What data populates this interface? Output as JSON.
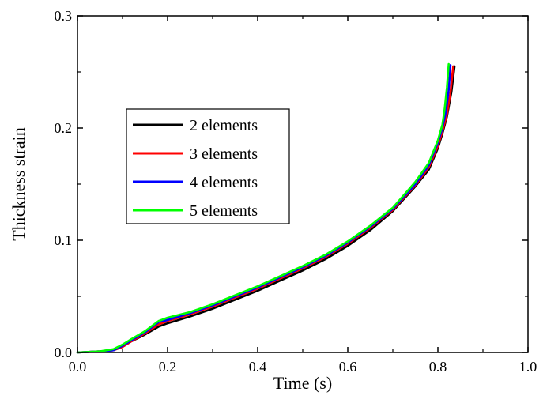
{
  "chart_data": {
    "type": "line",
    "title": "",
    "xlabel": "Time (s)",
    "ylabel": "Thickness strain",
    "xlim": [
      0.0,
      1.0
    ],
    "ylim": [
      0.0,
      0.3
    ],
    "xticks": [
      0.0,
      0.2,
      0.4,
      0.6,
      0.8,
      1.0
    ],
    "xtick_labels": [
      "0.0",
      "0.2",
      "0.4",
      "0.6",
      "0.8",
      "1.0"
    ],
    "yticks": [
      0.0,
      0.1,
      0.2,
      0.3
    ],
    "ytick_labels": [
      "0.0",
      "0.1",
      "0.2",
      "0.3"
    ],
    "grid": false,
    "legend_position": "upper-left",
    "series": [
      {
        "name": "2 elements",
        "color": "#000000",
        "x": [
          0.0,
          0.05,
          0.08,
          0.1,
          0.12,
          0.15,
          0.18,
          0.2,
          0.25,
          0.3,
          0.35,
          0.4,
          0.45,
          0.5,
          0.55,
          0.6,
          0.65,
          0.7,
          0.75,
          0.78,
          0.8,
          0.81,
          0.82,
          0.83,
          0.837
        ],
        "y": [
          0.0,
          0.001,
          0.002,
          0.005,
          0.01,
          0.016,
          0.023,
          0.026,
          0.032,
          0.039,
          0.047,
          0.055,
          0.064,
          0.073,
          0.083,
          0.095,
          0.109,
          0.126,
          0.148,
          0.163,
          0.182,
          0.195,
          0.21,
          0.232,
          0.255
        ]
      },
      {
        "name": "3 elements",
        "color": "#ff0000",
        "x": [
          0.0,
          0.05,
          0.08,
          0.1,
          0.12,
          0.15,
          0.18,
          0.2,
          0.25,
          0.3,
          0.35,
          0.4,
          0.45,
          0.5,
          0.55,
          0.6,
          0.65,
          0.7,
          0.75,
          0.78,
          0.8,
          0.81,
          0.82,
          0.828,
          0.834
        ],
        "y": [
          0.0,
          0.001,
          0.002,
          0.005,
          0.01,
          0.017,
          0.025,
          0.028,
          0.034,
          0.041,
          0.049,
          0.057,
          0.066,
          0.075,
          0.085,
          0.097,
          0.111,
          0.127,
          0.149,
          0.165,
          0.184,
          0.197,
          0.212,
          0.232,
          0.255
        ]
      },
      {
        "name": "4 elements",
        "color": "#0000ff",
        "x": [
          0.0,
          0.05,
          0.08,
          0.1,
          0.12,
          0.15,
          0.18,
          0.2,
          0.25,
          0.3,
          0.35,
          0.4,
          0.45,
          0.5,
          0.55,
          0.6,
          0.65,
          0.7,
          0.75,
          0.78,
          0.8,
          0.81,
          0.818,
          0.824,
          0.828
        ],
        "y": [
          0.0,
          0.001,
          0.002,
          0.006,
          0.011,
          0.018,
          0.027,
          0.029,
          0.035,
          0.042,
          0.05,
          0.058,
          0.067,
          0.076,
          0.086,
          0.098,
          0.112,
          0.128,
          0.15,
          0.167,
          0.187,
          0.2,
          0.215,
          0.234,
          0.256
        ]
      },
      {
        "name": "5 elements",
        "color": "#00ff00",
        "x": [
          0.0,
          0.05,
          0.08,
          0.1,
          0.12,
          0.15,
          0.18,
          0.2,
          0.25,
          0.3,
          0.35,
          0.4,
          0.45,
          0.5,
          0.55,
          0.6,
          0.65,
          0.7,
          0.75,
          0.78,
          0.8,
          0.81,
          0.815,
          0.82,
          0.824
        ],
        "y": [
          0.0,
          0.001,
          0.003,
          0.007,
          0.012,
          0.019,
          0.028,
          0.031,
          0.036,
          0.043,
          0.051,
          0.059,
          0.068,
          0.077,
          0.087,
          0.099,
          0.113,
          0.129,
          0.152,
          0.169,
          0.189,
          0.203,
          0.217,
          0.236,
          0.257
        ]
      }
    ]
  }
}
